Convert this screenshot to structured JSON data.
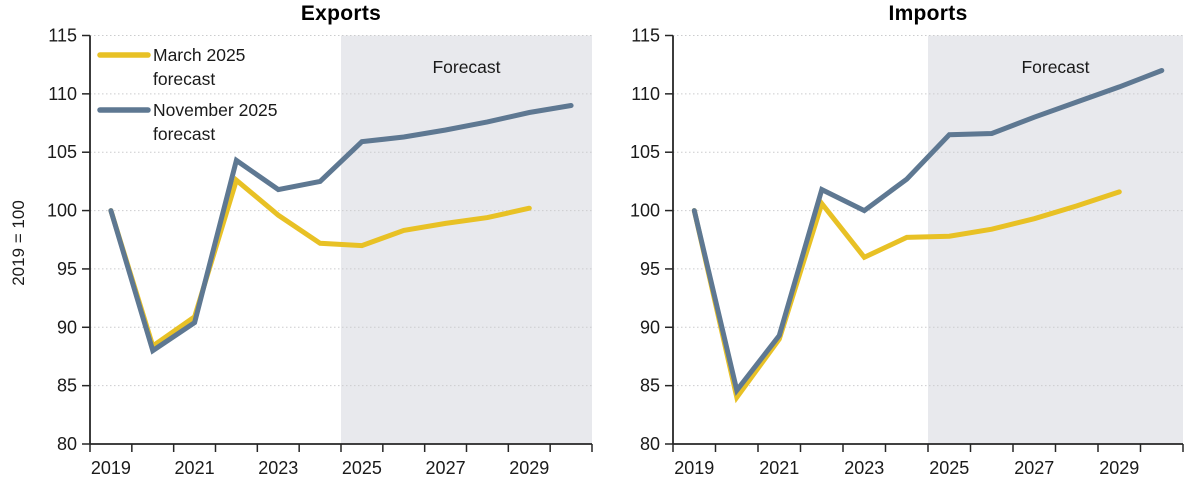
{
  "colors": {
    "march_line": "#E8C125",
    "november_line": "#5E7892",
    "forecast_band": "#E8E9ED",
    "gridline": "#CBCCCE",
    "axis": "#262626",
    "title_text": "#000000"
  },
  "legend": {
    "items": [
      {
        "id": "march-2025-forecast",
        "label": "March 2025 forecast",
        "label_lines": [
          "March 2025",
          "forecast"
        ],
        "color": "#E8C125"
      },
      {
        "id": "november-2025-forecast",
        "label": "November 2025 forecast",
        "label_lines": [
          "November 2025",
          "forecast"
        ],
        "color": "#5E7892"
      }
    ]
  },
  "chart_data": [
    {
      "type": "line",
      "title": "Exports",
      "ylabel": "2019 = 100",
      "ylim": [
        80,
        115
      ],
      "ytick_labels": [
        "80",
        "85",
        "90",
        "95",
        "100",
        "105",
        "110",
        "115"
      ],
      "x_years": [
        2019,
        2020,
        2021,
        2022,
        2023,
        2024,
        2025,
        2026,
        2027,
        2028,
        2029,
        2030
      ],
      "xtick_labels": [
        "2019",
        "2021",
        "2023",
        "2025",
        "2027",
        "2029"
      ],
      "grid": "horizontal-dotted",
      "has_legend": true,
      "forecast_region": {
        "start_year": 2025,
        "label": "Forecast"
      },
      "series": [
        {
          "name": "March 2025 forecast",
          "color": "#E8C125",
          "values": [
            100,
            88.4,
            90.9,
            102.6,
            99.6,
            97.2,
            97.0,
            98.3,
            98.9,
            99.4,
            100.2
          ]
        },
        {
          "name": "November 2025 forecast",
          "color": "#5E7892",
          "values": [
            100,
            88.0,
            90.4,
            104.3,
            101.8,
            102.5,
            105.9,
            106.3,
            106.9,
            107.6,
            108.4,
            109.0
          ]
        }
      ]
    },
    {
      "type": "line",
      "title": "Imports",
      "ylabel": "",
      "ylim": [
        80,
        115
      ],
      "ytick_labels": [
        "80",
        "85",
        "90",
        "95",
        "100",
        "105",
        "110",
        "115"
      ],
      "x_years": [
        2019,
        2020,
        2021,
        2022,
        2023,
        2024,
        2025,
        2026,
        2027,
        2028,
        2029,
        2030
      ],
      "xtick_labels": [
        "2019",
        "2021",
        "2023",
        "2025",
        "2027",
        "2029"
      ],
      "grid": "horizontal-dotted",
      "has_legend": false,
      "forecast_region": {
        "start_year": 2025,
        "label": "Forecast"
      },
      "series": [
        {
          "name": "March 2025 forecast",
          "color": "#E8C125",
          "values": [
            100,
            84.0,
            89.0,
            100.6,
            96.0,
            97.7,
            97.8,
            98.4,
            99.3,
            100.4,
            101.6
          ]
        },
        {
          "name": "November 2025 forecast",
          "color": "#5E7892",
          "values": [
            100,
            84.6,
            89.3,
            101.8,
            100.0,
            102.7,
            106.5,
            106.6,
            108.0,
            109.3,
            110.6,
            112.0
          ]
        }
      ]
    }
  ]
}
